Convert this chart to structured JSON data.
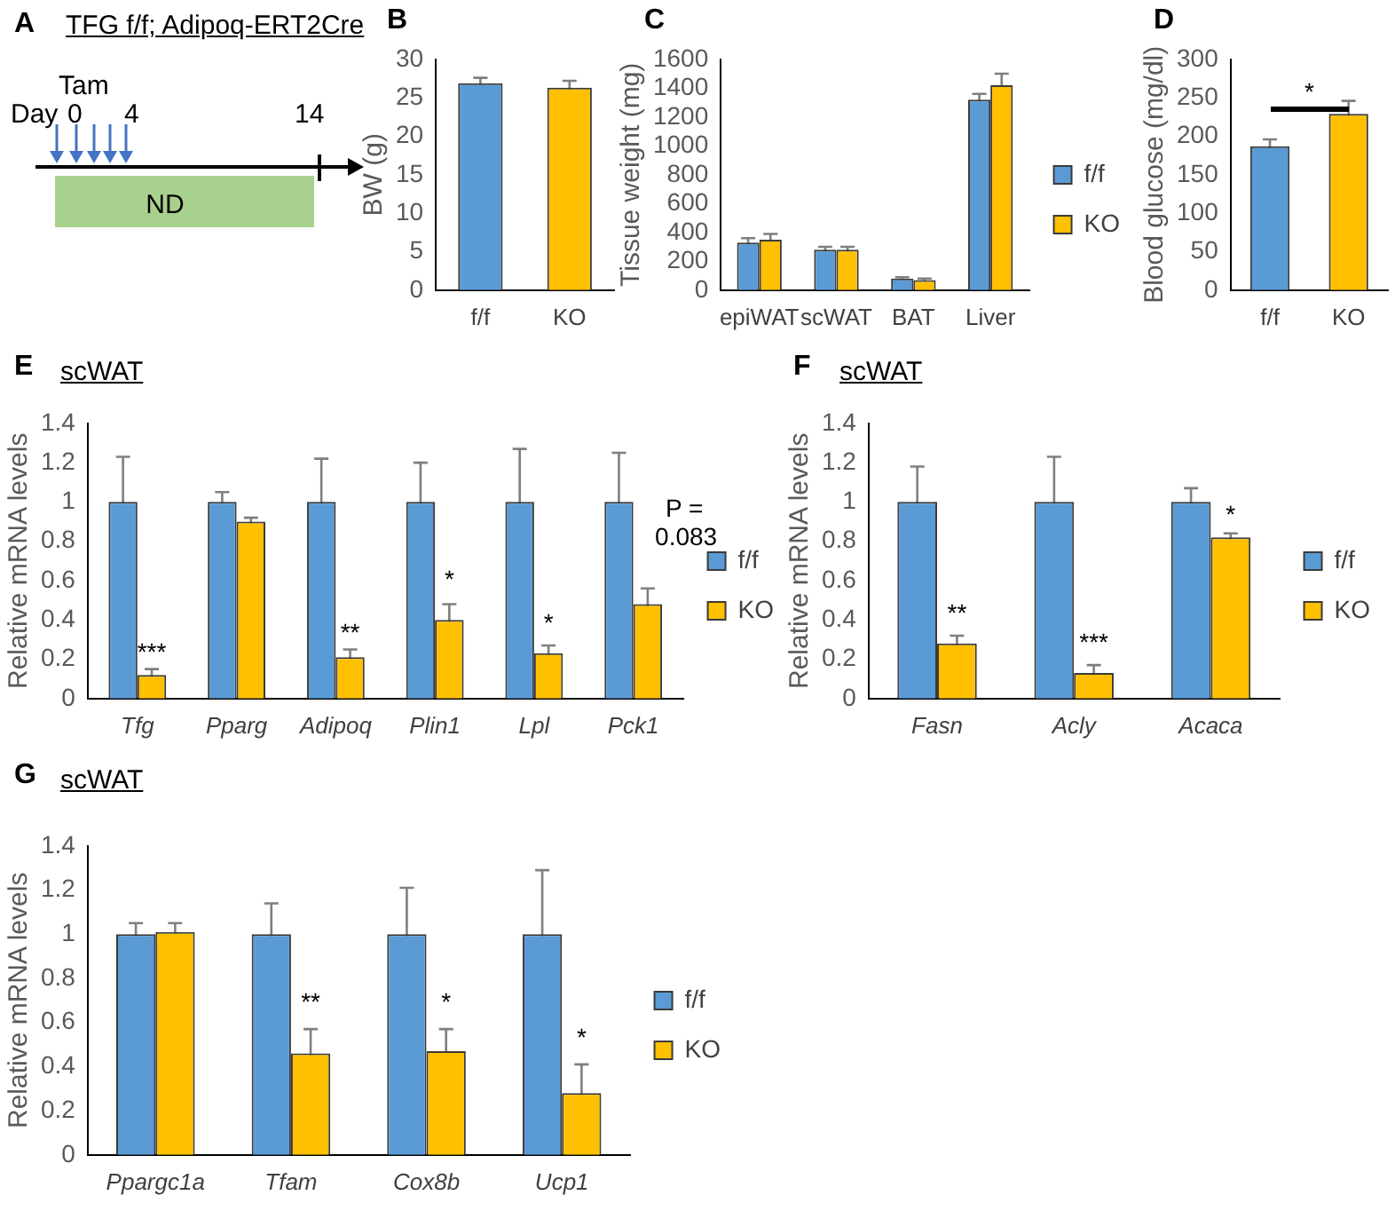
{
  "chart_data": [
    {
      "type": "other",
      "title": "TFG f/f; Adipoq-ERT2Cre",
      "annotations": [
        "A",
        "Tam",
        "Day",
        "0",
        "4",
        "14",
        "ND"
      ]
    },
    {
      "type": "bar",
      "categories": [
        "f/f",
        "KO"
      ],
      "values": [
        26.9,
        26.3
      ],
      "colors": [
        "#5b9bd5",
        "#ffc000"
      ],
      "errors": [
        0.7,
        0.9
      ],
      "ylim": [
        0,
        30
      ],
      "yticks": [
        0,
        5,
        10,
        15,
        20,
        25,
        30
      ],
      "ylabel": "BW (g)",
      "annotations": [
        "B"
      ]
    },
    {
      "type": "bar",
      "categories": [
        "epiWAT",
        "scWAT",
        "BAT",
        "Liver"
      ],
      "series": [
        {
          "name": "f/f",
          "color": "#5b9bd5",
          "values": [
            330,
            280,
            80,
            1320
          ],
          "errors": [
            30,
            20,
            10,
            40
          ]
        },
        {
          "name": "KO",
          "color": "#ffc000",
          "values": [
            350,
            280,
            70,
            1420
          ],
          "errors": [
            40,
            20,
            10,
            80
          ]
        }
      ],
      "ylim": [
        0,
        1600
      ],
      "yticks": [
        0,
        200,
        400,
        600,
        800,
        1000,
        1200,
        1400,
        1600
      ],
      "ylabel": "Tissue weight (mg)",
      "legend": "right",
      "annotations": [
        "C"
      ]
    },
    {
      "type": "bar",
      "categories": [
        "f/f",
        "KO"
      ],
      "values": [
        187,
        229
      ],
      "colors": [
        "#5b9bd5",
        "#ffc000"
      ],
      "errors": [
        9,
        17
      ],
      "ylim": [
        0,
        300
      ],
      "yticks": [
        0,
        50,
        100,
        150,
        200,
        250,
        300
      ],
      "ylabel": "Blood glucose (mg/dl)",
      "annotations": [
        "D",
        "*"
      ]
    },
    {
      "type": "bar",
      "title": "scWAT",
      "categories": [
        "Tfg",
        "Pparg",
        "Adipoq",
        "Plin1",
        "Lpl",
        "Pck1"
      ],
      "series": [
        {
          "name": "f/f",
          "color": "#5b9bd5",
          "values": [
            1,
            1,
            1,
            1,
            1,
            1
          ],
          "errors": [
            0.23,
            0.05,
            0.22,
            0.2,
            0.27,
            0.25
          ]
        },
        {
          "name": "KO",
          "color": "#ffc000",
          "values": [
            0.12,
            0.9,
            0.21,
            0.4,
            0.23,
            0.48
          ],
          "errors": [
            0.03,
            0.02,
            0.04,
            0.08,
            0.04,
            0.08
          ]
        }
      ],
      "ylim": [
        0,
        1.4
      ],
      "yticks": [
        0,
        0.2,
        0.4,
        0.6,
        0.8,
        1,
        1.2,
        1.4
      ],
      "ylabel": "Relative mRNA levels",
      "legend": "right",
      "annotations": [
        "E",
        {
          "text": "***",
          "x": "Tfg",
          "y": 0.2
        },
        {
          "text": "**",
          "x": "Adipoq",
          "y": 0.3
        },
        {
          "text": "*",
          "x": "Plin1",
          "y": 0.57
        },
        {
          "text": "*",
          "x": "Lpl",
          "y": 0.35
        },
        {
          "text": "P = 0.083",
          "x": "Pck1",
          "y": 0.75
        }
      ]
    },
    {
      "type": "bar",
      "title": "scWAT",
      "categories": [
        "Fasn",
        "Acly",
        "Acaca"
      ],
      "series": [
        {
          "name": "f/f",
          "color": "#5b9bd5",
          "values": [
            1,
            1,
            1
          ],
          "errors": [
            0.18,
            0.23,
            0.07
          ]
        },
        {
          "name": "KO",
          "color": "#ffc000",
          "values": [
            0.28,
            0.13,
            0.82
          ],
          "errors": [
            0.04,
            0.04,
            0.02
          ]
        }
      ],
      "ylim": [
        0,
        1.4
      ],
      "yticks": [
        0,
        0.2,
        0.4,
        0.6,
        0.8,
        1,
        1.2,
        1.4
      ],
      "ylabel": "Relative mRNA levels",
      "legend": "right",
      "annotations": [
        "F",
        {
          "text": "**",
          "x": "Fasn",
          "y": 0.4
        },
        {
          "text": "***",
          "x": "Acly",
          "y": 0.25
        },
        {
          "text": "*",
          "x": "Acaca",
          "y": 0.9
        }
      ]
    },
    {
      "type": "bar",
      "title": "scWAT",
      "categories": [
        "Ppargc1a",
        "Tfam",
        "Cox8b",
        "Ucp1"
      ],
      "series": [
        {
          "name": "f/f",
          "color": "#5b9bd5",
          "values": [
            1,
            1,
            1,
            1
          ],
          "errors": [
            0.05,
            0.14,
            0.21,
            0.29
          ]
        },
        {
          "name": "KO",
          "color": "#ffc000",
          "values": [
            1.01,
            0.46,
            0.47,
            0.28
          ],
          "errors": [
            0.04,
            0.11,
            0.1,
            0.13
          ]
        }
      ],
      "ylim": [
        0,
        1.4
      ],
      "yticks": [
        0,
        0.2,
        0.4,
        0.6,
        0.8,
        1,
        1.2,
        1.4
      ],
      "ylabel": "Relative mRNA levels",
      "legend": "right",
      "annotations": [
        "G",
        {
          "text": "**",
          "x": "Tfam",
          "y": 0.66
        },
        {
          "text": "*",
          "x": "Cox8b",
          "y": 0.66
        },
        {
          "text": "*",
          "x": "Ucp1",
          "y": 0.5
        }
      ]
    }
  ]
}
